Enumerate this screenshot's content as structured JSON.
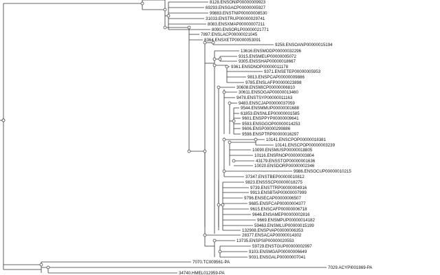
{
  "tree": {
    "leaves": [
      "8128.ENSONIP00000009923",
      "69293.ENSGACP00000005927",
      "99883.ENSTNIP00000008530",
      "31033.ENSTRUP00000029741",
      "8083.ENSXMAP00000007211",
      "8090.ENSORLP00000021771",
      "7897.ENSLACP00000021045",
      "8364.ENSXETP00000053091",
      "9258.ENSOANP00000015194",
      "13616.ENSMODP00000032296",
      "9315.ENSMEUP00000005072",
      "9305.ENSSHAP00000018667",
      "9361.ENSDNOP00000011178",
      "9371.ENSETEP00000005953",
      "9813.ENSPCAP00000009886",
      "9785.ENSLAFP00000023898",
      "30608.ENSMICP00000006810",
      "30611.ENSOGAP00000013460",
      "9478.ENSTSYP00000011163",
      "9483.ENSCJAP00000037059",
      "9544.ENSMMUP00000001688",
      "61853.ENSNLEP00000001585",
      "9601.ENSPPYP00000009641",
      "9593.ENSGGOP00000014253",
      "9606.ENSP00000299886",
      "9598.ENSPTRP00000016297",
      "10141.ENSCPOP00000018381",
      "10141.ENSCPOP00000003239",
      "10090.ENSMUSP00000018805",
      "10116.ENSRNOP00000003804",
      "43179.ENSSTOP00000001636",
      "10020.ENSDORP00000002346",
      "9986.ENSOCUP00000010215",
      "37347.ENSTBEP00000010812",
      "9823.ENSSSCP00000018275",
      "9739.ENSTTRP00000004916",
      "9913.ENSBTAP00000007999",
      "9796.ENSECAP00000006507",
      "9685.ENSFCAP00000004377",
      "9615.ENSCAFP00000006718",
      "9646.ENSAMEP00000002816",
      "9669.ENSMPUP00000014182",
      "59463.ENSMLUP00000015199",
      "132908.ENSPVAP00000006353",
      "28377.ENSACAP00000014302",
      "13735.ENSPSIP00000020553",
      "59729.ENSTGUP00000002997",
      "9103.ENSMGAP00000006649",
      "9031.ENSGALP00000007041",
      "7070.TC009561-PA",
      "7029.ACYPI001869-PA",
      "34740.HMEL012959-PA"
    ]
  }
}
